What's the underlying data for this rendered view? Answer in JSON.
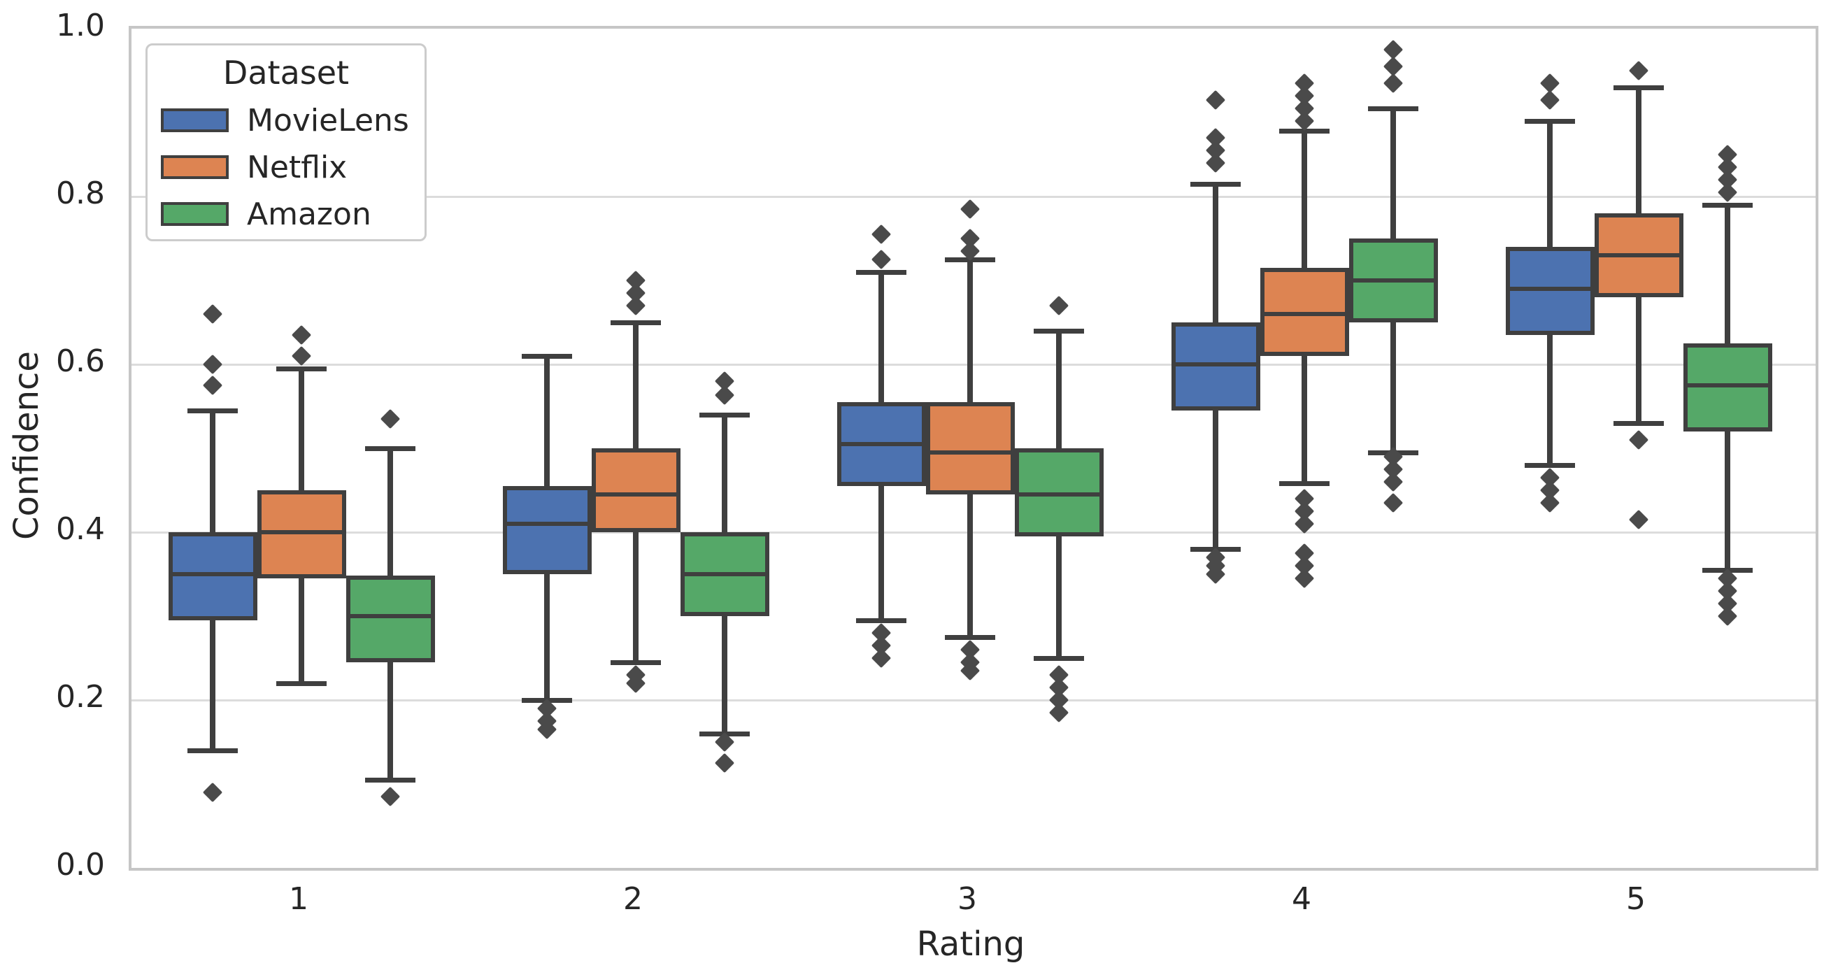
{
  "chart_data": {
    "type": "boxplot",
    "title": "",
    "xlabel": "Rating",
    "ylabel": "Confidence",
    "categories": [
      "1",
      "2",
      "3",
      "4",
      "5"
    ],
    "ylim": [
      0.0,
      1.0
    ],
    "ytick_labels": [
      "0.0",
      "0.2",
      "0.4",
      "0.6",
      "0.8",
      "1.0"
    ],
    "ytick_values": [
      0.0,
      0.2,
      0.4,
      0.6,
      0.8,
      1.0
    ],
    "grid_values": [
      0.2,
      0.4,
      0.6,
      0.8
    ],
    "grid": "horizontal",
    "legend": {
      "title": "Dataset",
      "position": "upper left"
    },
    "colors": {
      "movielens": "#4C72B0",
      "netflix": "#DD8452",
      "amazon": "#55A868",
      "box_edge": "#3f3f3f",
      "flier": "#4a4a4a",
      "gridline": "#dcdcdc",
      "spine": "#c6c6c6",
      "text": "#262626"
    },
    "series": [
      {
        "name": "MovieLens",
        "color": "#4C72B0",
        "boxes": [
          {
            "whislo": 0.14,
            "q1": 0.295,
            "med": 0.35,
            "q3": 0.4,
            "whishi": 0.545,
            "fliers": [
              0.66,
              0.6,
              0.575,
              0.09
            ]
          },
          {
            "whislo": 0.2,
            "q1": 0.35,
            "med": 0.41,
            "q3": 0.455,
            "whishi": 0.61,
            "fliers": [
              0.19,
              0.175,
              0.165
            ]
          },
          {
            "whislo": 0.295,
            "q1": 0.455,
            "med": 0.505,
            "q3": 0.555,
            "whishi": 0.71,
            "fliers": [
              0.755,
              0.725,
              0.28,
              0.265,
              0.25
            ]
          },
          {
            "whislo": 0.38,
            "q1": 0.545,
            "med": 0.6,
            "q3": 0.65,
            "whishi": 0.815,
            "fliers": [
              0.915,
              0.87,
              0.855,
              0.84,
              0.37,
              0.36,
              0.35
            ]
          },
          {
            "whislo": 0.48,
            "q1": 0.635,
            "med": 0.69,
            "q3": 0.74,
            "whishi": 0.89,
            "fliers": [
              0.935,
              0.915,
              0.465,
              0.45,
              0.435
            ]
          }
        ]
      },
      {
        "name": "Netflix",
        "color": "#DD8452",
        "boxes": [
          {
            "whislo": 0.22,
            "q1": 0.345,
            "med": 0.4,
            "q3": 0.45,
            "whishi": 0.595,
            "fliers": [
              0.635,
              0.61
            ]
          },
          {
            "whislo": 0.245,
            "q1": 0.4,
            "med": 0.445,
            "q3": 0.5,
            "whishi": 0.65,
            "fliers": [
              0.7,
              0.685,
              0.67,
              0.23,
              0.22
            ]
          },
          {
            "whislo": 0.275,
            "q1": 0.445,
            "med": 0.495,
            "q3": 0.555,
            "whishi": 0.725,
            "fliers": [
              0.785,
              0.75,
              0.735,
              0.26,
              0.245,
              0.235
            ]
          },
          {
            "whislo": 0.458,
            "q1": 0.61,
            "med": 0.66,
            "q3": 0.715,
            "whishi": 0.878,
            "fliers": [
              0.935,
              0.92,
              0.905,
              0.89,
              0.44,
              0.425,
              0.41,
              0.375,
              0.36,
              0.345
            ]
          },
          {
            "whislo": 0.53,
            "q1": 0.68,
            "med": 0.73,
            "q3": 0.78,
            "whishi": 0.93,
            "fliers": [
              0.95,
              0.51,
              0.415
            ]
          }
        ]
      },
      {
        "name": "Amazon",
        "color": "#55A868",
        "boxes": [
          {
            "whislo": 0.105,
            "q1": 0.245,
            "med": 0.3,
            "q3": 0.348,
            "whishi": 0.5,
            "fliers": [
              0.535,
              0.085
            ]
          },
          {
            "whislo": 0.16,
            "q1": 0.3,
            "med": 0.35,
            "q3": 0.4,
            "whishi": 0.54,
            "fliers": [
              0.58,
              0.563,
              0.15,
              0.125
            ]
          },
          {
            "whislo": 0.25,
            "q1": 0.395,
            "med": 0.445,
            "q3": 0.5,
            "whishi": 0.64,
            "fliers": [
              0.67,
              0.23,
              0.215,
              0.2,
              0.185
            ]
          },
          {
            "whislo": 0.495,
            "q1": 0.65,
            "med": 0.7,
            "q3": 0.75,
            "whishi": 0.905,
            "fliers": [
              0.975,
              0.955,
              0.935,
              0.49,
              0.475,
              0.46,
              0.435
            ]
          },
          {
            "whislo": 0.355,
            "q1": 0.52,
            "med": 0.575,
            "q3": 0.625,
            "whishi": 0.79,
            "fliers": [
              0.85,
              0.835,
              0.82,
              0.805,
              0.345,
              0.33,
              0.315,
              0.3
            ]
          }
        ]
      }
    ]
  }
}
